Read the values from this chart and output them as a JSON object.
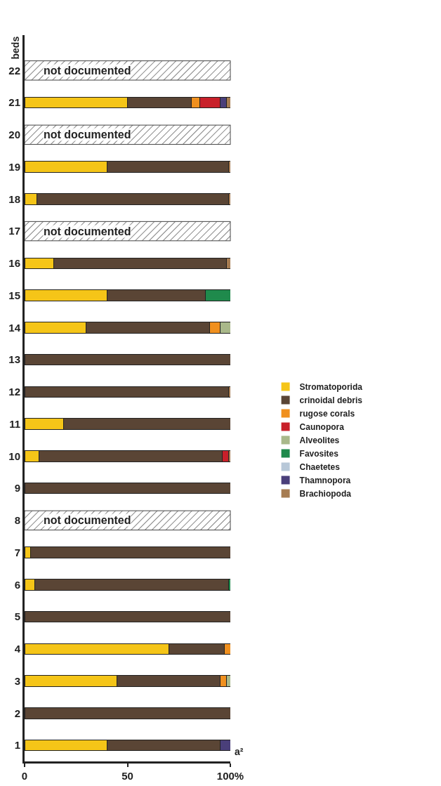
{
  "chart_data": {
    "type": "bar",
    "orientation": "horizontal",
    "stacked": true,
    "ylabel": "beds",
    "xlabel": "a²",
    "categories": [
      "22",
      "21",
      "20",
      "19",
      "18",
      "17",
      "16",
      "15",
      "14",
      "13",
      "12",
      "11",
      "10",
      "9",
      "8",
      "7",
      "6",
      "5",
      "4",
      "3",
      "2",
      "1"
    ],
    "series": [
      {
        "name": "Stromatoporida",
        "color": "#f5c518",
        "values": [
          null,
          50,
          null,
          40,
          6,
          null,
          14,
          40,
          30,
          0,
          0,
          19,
          7,
          0,
          null,
          3,
          5,
          0,
          70,
          45,
          0,
          40
        ]
      },
      {
        "name": "crinoidal debris",
        "color": "#5a4535",
        "values": [
          null,
          31,
          null,
          59,
          93,
          null,
          84,
          48,
          60,
          100,
          99,
          81,
          89,
          100,
          null,
          97,
          94,
          100,
          27,
          50,
          100,
          55
        ]
      },
      {
        "name": "rugose corals",
        "color": "#f0901f",
        "values": [
          null,
          4,
          null,
          0,
          0,
          null,
          0,
          0,
          5,
          0,
          0,
          0,
          0,
          0,
          null,
          0,
          0,
          0,
          3,
          3,
          0,
          0
        ]
      },
      {
        "name": "Caunopora",
        "color": "#c8202a",
        "values": [
          null,
          10,
          null,
          0,
          0,
          null,
          0,
          0,
          0,
          0,
          0,
          0,
          3,
          0,
          null,
          0,
          0,
          0,
          0,
          0,
          0,
          0
        ]
      },
      {
        "name": "Alveolites",
        "color": "#a9b88a",
        "values": [
          null,
          0,
          null,
          0,
          0,
          null,
          0,
          0,
          5,
          0,
          0,
          0,
          0,
          0,
          null,
          0,
          0,
          0,
          0,
          2,
          0,
          0
        ]
      },
      {
        "name": "Favosites",
        "color": "#1f8a4c",
        "values": [
          null,
          0,
          null,
          0,
          0,
          null,
          0,
          12,
          0,
          0,
          0,
          0,
          0,
          0,
          null,
          0,
          1,
          0,
          0,
          0,
          0,
          0
        ]
      },
      {
        "name": "Chaetetes",
        "color": "#b8c8d8",
        "values": [
          null,
          0,
          null,
          0,
          0,
          null,
          0,
          0,
          0,
          0,
          0,
          0,
          0,
          0,
          null,
          0,
          0,
          0,
          0,
          0,
          0,
          0
        ]
      },
      {
        "name": "Thamnopora",
        "color": "#4a3f7a",
        "values": [
          null,
          3,
          null,
          0,
          0,
          null,
          0,
          0,
          0,
          0,
          0,
          0,
          0,
          0,
          null,
          0,
          0,
          0,
          0,
          0,
          0,
          5
        ]
      },
      {
        "name": "Brachiopoda",
        "color": "#a67c52",
        "values": [
          null,
          2,
          null,
          1,
          1,
          null,
          2,
          0,
          0,
          0,
          1,
          0,
          1,
          0,
          null,
          0,
          0,
          0,
          0,
          0,
          0,
          0
        ]
      }
    ],
    "xlim": [
      0,
      100
    ],
    "xticks": [
      0,
      50,
      {
        "value": 100,
        "label": "100%"
      }
    ],
    "bands": [
      {
        "axis": "y",
        "from": "22",
        "to": "22",
        "label": "not documented",
        "color": "#444444"
      },
      {
        "axis": "y",
        "from": "20",
        "to": "20",
        "label": "not documented",
        "color": "#444444"
      },
      {
        "axis": "y",
        "from": "17",
        "to": "17",
        "label": "not documented",
        "color": "#444444"
      },
      {
        "axis": "y",
        "from": "8",
        "to": "8",
        "label": "not documented",
        "color": "#444444"
      }
    ],
    "grid": false,
    "legend": "right"
  }
}
